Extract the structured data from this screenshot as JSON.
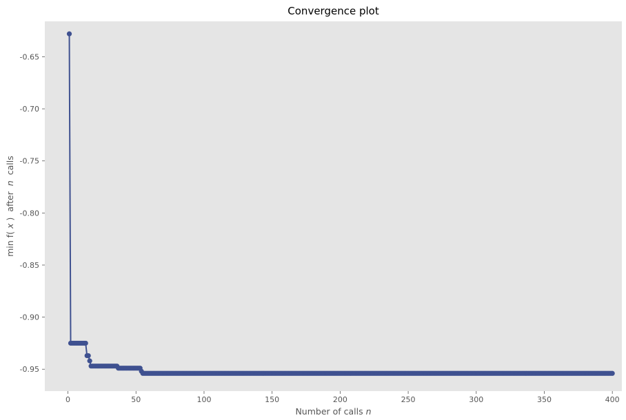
{
  "chart_data": {
    "type": "line",
    "title": "Convergence plot",
    "xlabel": "Number of calls",
    "xlabel_var": "n",
    "ylabel_prefix": "min",
    "ylabel_fx": "f(",
    "ylabel_x": "x",
    "ylabel_close": ")",
    "ylabel_after": " after ",
    "ylabel_var": "n",
    "ylabel_suffix": " calls",
    "xlim": [
      -17,
      407
    ],
    "ylim": [
      -0.971,
      -0.616
    ],
    "xticks": [
      0,
      50,
      100,
      150,
      200,
      250,
      300,
      350,
      400
    ],
    "xtick_labels": [
      "0",
      "50",
      "100",
      "150",
      "200",
      "250",
      "300",
      "350",
      "400"
    ],
    "yticks": [
      -0.65,
      -0.7,
      -0.75,
      -0.8,
      -0.85,
      -0.9,
      -0.95
    ],
    "ytick_labels": [
      "-0.65",
      "-0.70",
      "-0.75",
      "-0.80",
      "-0.85",
      "-0.90",
      "-0.95"
    ],
    "grid": false,
    "series": [
      {
        "color": "#3f5190",
        "marker": "circle",
        "n_calls": 400,
        "steps": [
          {
            "from": 1,
            "value": -0.628
          },
          {
            "from": 2,
            "value": -0.925
          },
          {
            "from": 14,
            "value": -0.937
          },
          {
            "from": 16,
            "value": -0.942
          },
          {
            "from": 17,
            "value": -0.947
          },
          {
            "from": 37,
            "value": -0.949
          },
          {
            "from": 54,
            "value": -0.952
          },
          {
            "from": 55,
            "value": -0.954
          }
        ]
      }
    ]
  },
  "colors": {
    "plot_background": "#e5e5e5",
    "series": "#3f5190",
    "text": "#555555"
  }
}
